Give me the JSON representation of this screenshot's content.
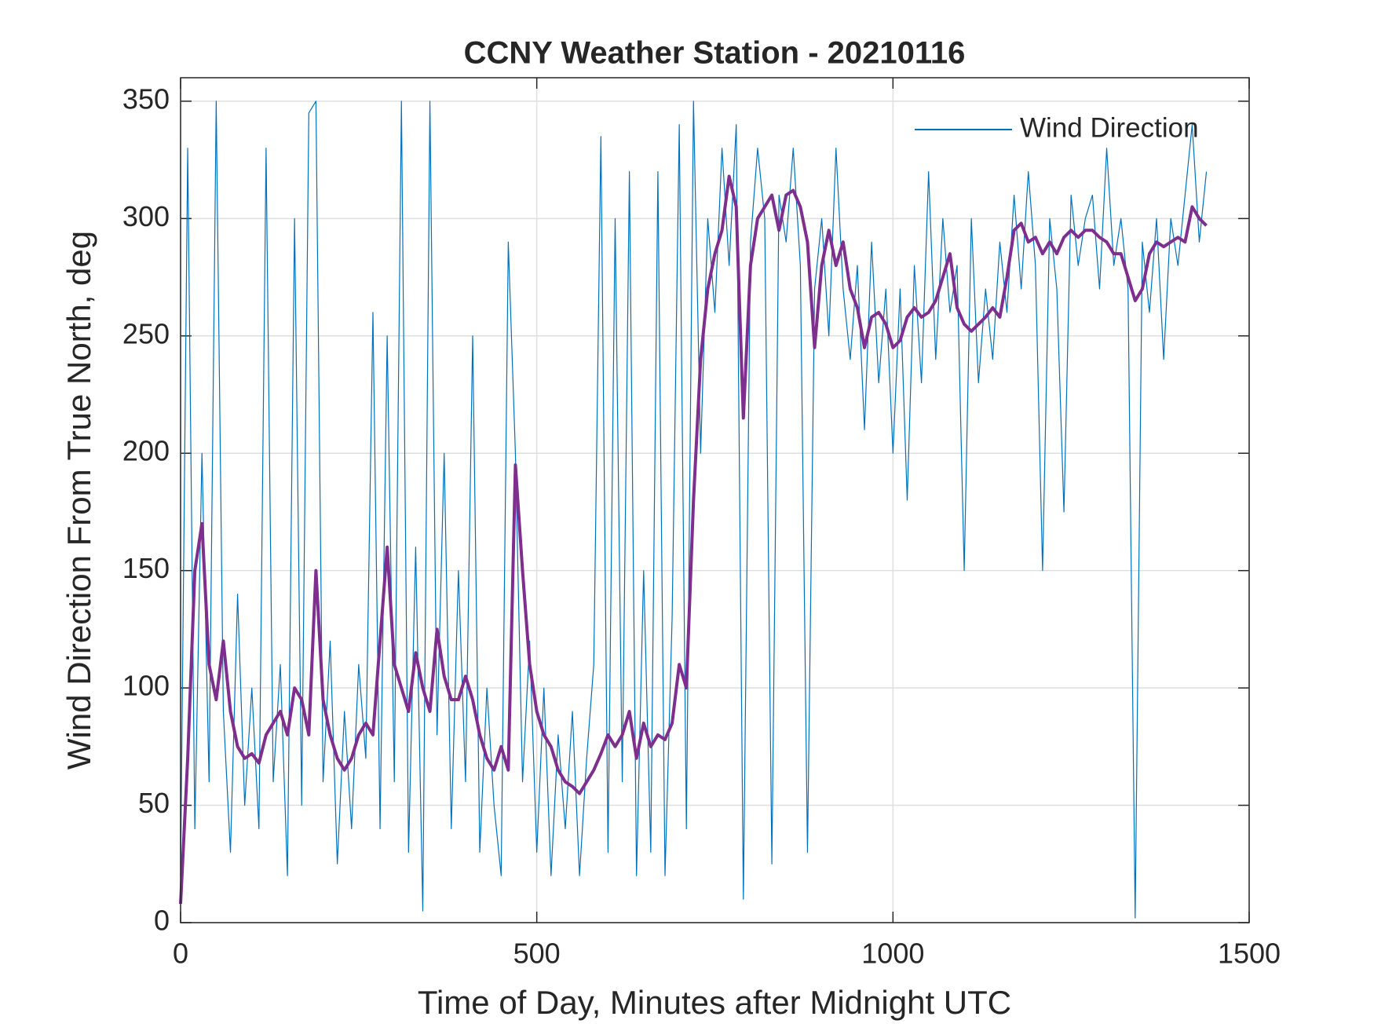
{
  "chart_data": {
    "type": "line",
    "title": "CCNY Weather Station - 20210116",
    "xlabel": "Time of Day, Minutes after Midnight UTC",
    "ylabel": "Wind Direction From True North, deg",
    "xlim": [
      0,
      1500
    ],
    "xticks": [
      0,
      500,
      1000,
      1500
    ],
    "ylim": [
      0,
      360
    ],
    "yticks": [
      0,
      50,
      100,
      150,
      200,
      250,
      300,
      350
    ],
    "grid": true,
    "legend": "northeast",
    "x": [
      0,
      10,
      20,
      30,
      40,
      50,
      60,
      70,
      80,
      90,
      100,
      110,
      120,
      130,
      140,
      150,
      160,
      170,
      180,
      190,
      200,
      210,
      220,
      230,
      240,
      250,
      260,
      270,
      280,
      290,
      300,
      310,
      320,
      330,
      340,
      350,
      360,
      370,
      380,
      390,
      400,
      410,
      420,
      430,
      440,
      450,
      460,
      470,
      480,
      490,
      500,
      510,
      520,
      530,
      540,
      550,
      560,
      570,
      580,
      590,
      600,
      610,
      620,
      630,
      640,
      650,
      660,
      670,
      680,
      690,
      700,
      710,
      720,
      730,
      740,
      750,
      760,
      770,
      780,
      790,
      800,
      810,
      820,
      830,
      840,
      850,
      860,
      870,
      880,
      890,
      900,
      910,
      920,
      930,
      940,
      950,
      960,
      970,
      980,
      990,
      1000,
      1010,
      1020,
      1030,
      1040,
      1050,
      1060,
      1070,
      1080,
      1090,
      1100,
      1110,
      1120,
      1130,
      1140,
      1150,
      1160,
      1170,
      1180,
      1190,
      1200,
      1210,
      1220,
      1230,
      1240,
      1250,
      1260,
      1270,
      1280,
      1290,
      1300,
      1310,
      1320,
      1330,
      1340,
      1350,
      1360,
      1370,
      1380,
      1390,
      1400,
      1410,
      1420,
      1430,
      1440
    ],
    "series": [
      {
        "name": "Wind Direction",
        "color": "#0072bd",
        "width": 1.2,
        "values": [
          20,
          330,
          40,
          200,
          60,
          350,
          90,
          30,
          140,
          50,
          100,
          40,
          330,
          60,
          110,
          20,
          300,
          50,
          345,
          350,
          60,
          120,
          25,
          90,
          40,
          110,
          70,
          260,
          40,
          250,
          60,
          350,
          30,
          160,
          5,
          350,
          80,
          200,
          40,
          150,
          60,
          250,
          30,
          100,
          50,
          20,
          290,
          200,
          60,
          120,
          30,
          100,
          20,
          80,
          40,
          90,
          20,
          70,
          110,
          335,
          30,
          300,
          60,
          320,
          20,
          150,
          30,
          320,
          20,
          130,
          340,
          40,
          350,
          200,
          300,
          260,
          330,
          280,
          340,
          10,
          290,
          330,
          300,
          25,
          310,
          290,
          330,
          280,
          30,
          270,
          300,
          250,
          330,
          270,
          240,
          280,
          210,
          290,
          230,
          270,
          200,
          270,
          180,
          280,
          230,
          320,
          240,
          300,
          260,
          280,
          150,
          300,
          230,
          270,
          240,
          290,
          260,
          310,
          270,
          320,
          280,
          150,
          300,
          270,
          175,
          310,
          280,
          300,
          310,
          270,
          330,
          280,
          300,
          270,
          2,
          290,
          260,
          300,
          240,
          300,
          280,
          310,
          340,
          290,
          320
        ]
      },
      {
        "color": "#7e2f8e",
        "width": 4,
        "values": [
          8,
          70,
          150,
          170,
          110,
          95,
          120,
          90,
          75,
          70,
          72,
          68,
          80,
          85,
          90,
          80,
          100,
          95,
          80,
          150,
          95,
          80,
          70,
          65,
          70,
          80,
          85,
          80,
          120,
          160,
          110,
          100,
          90,
          115,
          100,
          90,
          125,
          105,
          95,
          95,
          105,
          95,
          80,
          70,
          65,
          75,
          65,
          195,
          150,
          110,
          90,
          80,
          75,
          65,
          60,
          58,
          55,
          60,
          65,
          72,
          80,
          75,
          80,
          90,
          70,
          85,
          75,
          80,
          78,
          85,
          110,
          100,
          180,
          240,
          270,
          285,
          295,
          318,
          305,
          215,
          280,
          300,
          305,
          310,
          295,
          310,
          312,
          305,
          290,
          245,
          280,
          295,
          280,
          290,
          270,
          262,
          245,
          258,
          260,
          255,
          245,
          248,
          258,
          262,
          258,
          260,
          265,
          275,
          285,
          262,
          255,
          252,
          255,
          258,
          262,
          258,
          275,
          295,
          298,
          290,
          292,
          285,
          290,
          285,
          292,
          295,
          292,
          295,
          295,
          292,
          290,
          285,
          285,
          275,
          265,
          270,
          285,
          290,
          288,
          290,
          292,
          290,
          305,
          300,
          297
        ]
      }
    ]
  }
}
